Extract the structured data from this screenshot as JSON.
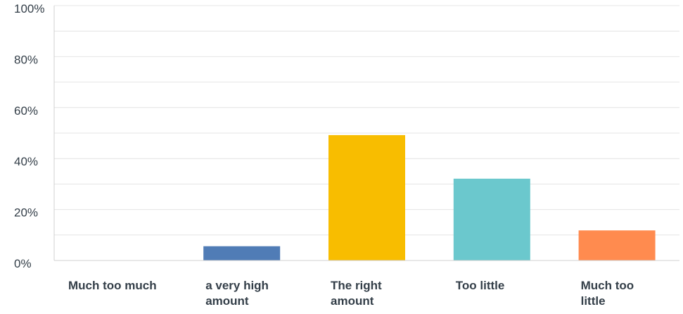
{
  "chart_data": {
    "type": "bar",
    "title": "",
    "xlabel": "",
    "ylabel": "",
    "categories": [
      "Much too much",
      "a very high amount",
      "The right amount",
      "Too little",
      "Much too little"
    ],
    "category_lines": [
      [
        "Much too much"
      ],
      [
        "a very high",
        "amount"
      ],
      [
        "The right",
        "amount"
      ],
      [
        "Too little"
      ],
      [
        "Much too",
        "little"
      ]
    ],
    "values": [
      0,
      5.6,
      49.2,
      32.1,
      11.8
    ],
    "colors": [
      "#6a8cc8",
      "#507cb6",
      "#f8bd00",
      "#6bc8cd",
      "#ff8b4f"
    ],
    "ylim": [
      0,
      100
    ],
    "yticks": [
      0,
      20,
      40,
      60,
      80,
      100
    ],
    "ytick_labels": [
      "0%",
      "20%",
      "40%",
      "60%",
      "80%",
      "100%"
    ],
    "minor_gridlines": [
      10,
      30,
      50,
      70,
      90
    ],
    "grid": true,
    "legend": "none"
  }
}
